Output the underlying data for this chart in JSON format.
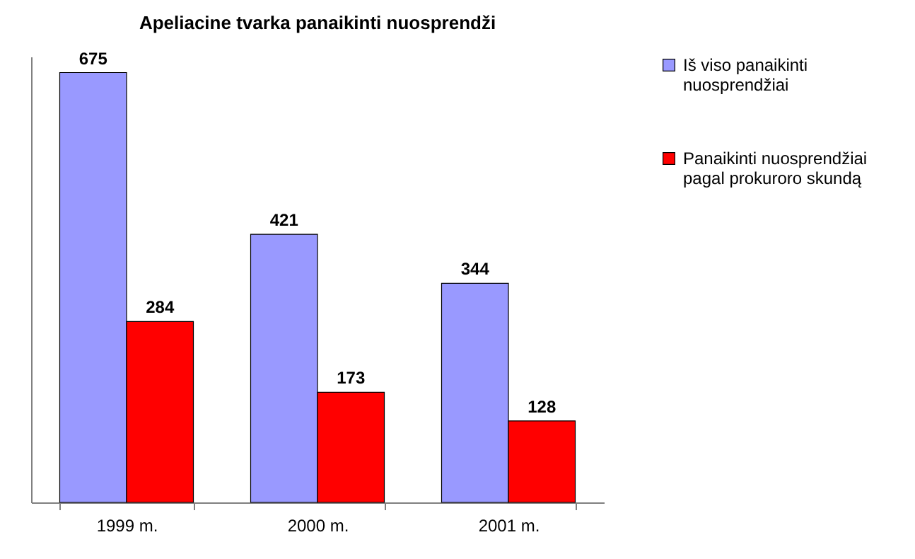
{
  "chart_data": {
    "type": "bar",
    "title": "Apeliacine tvarka panaikinti nuosprendži",
    "categories": [
      "1999 m.",
      "2000 m.",
      "2001 m."
    ],
    "series": [
      {
        "name": "Iš viso panaikinti nuosprendžiai",
        "color": "#9999ff",
        "values": [
          675,
          421,
          344
        ]
      },
      {
        "name": "Panaikinti nuosprendžiai pagal prokuroro skundą",
        "color": "#ff0000",
        "values": [
          284,
          173,
          128
        ]
      }
    ],
    "ylim": [
      0,
      700
    ],
    "data_labels": true,
    "legend": "right",
    "tick_labels": "x"
  }
}
